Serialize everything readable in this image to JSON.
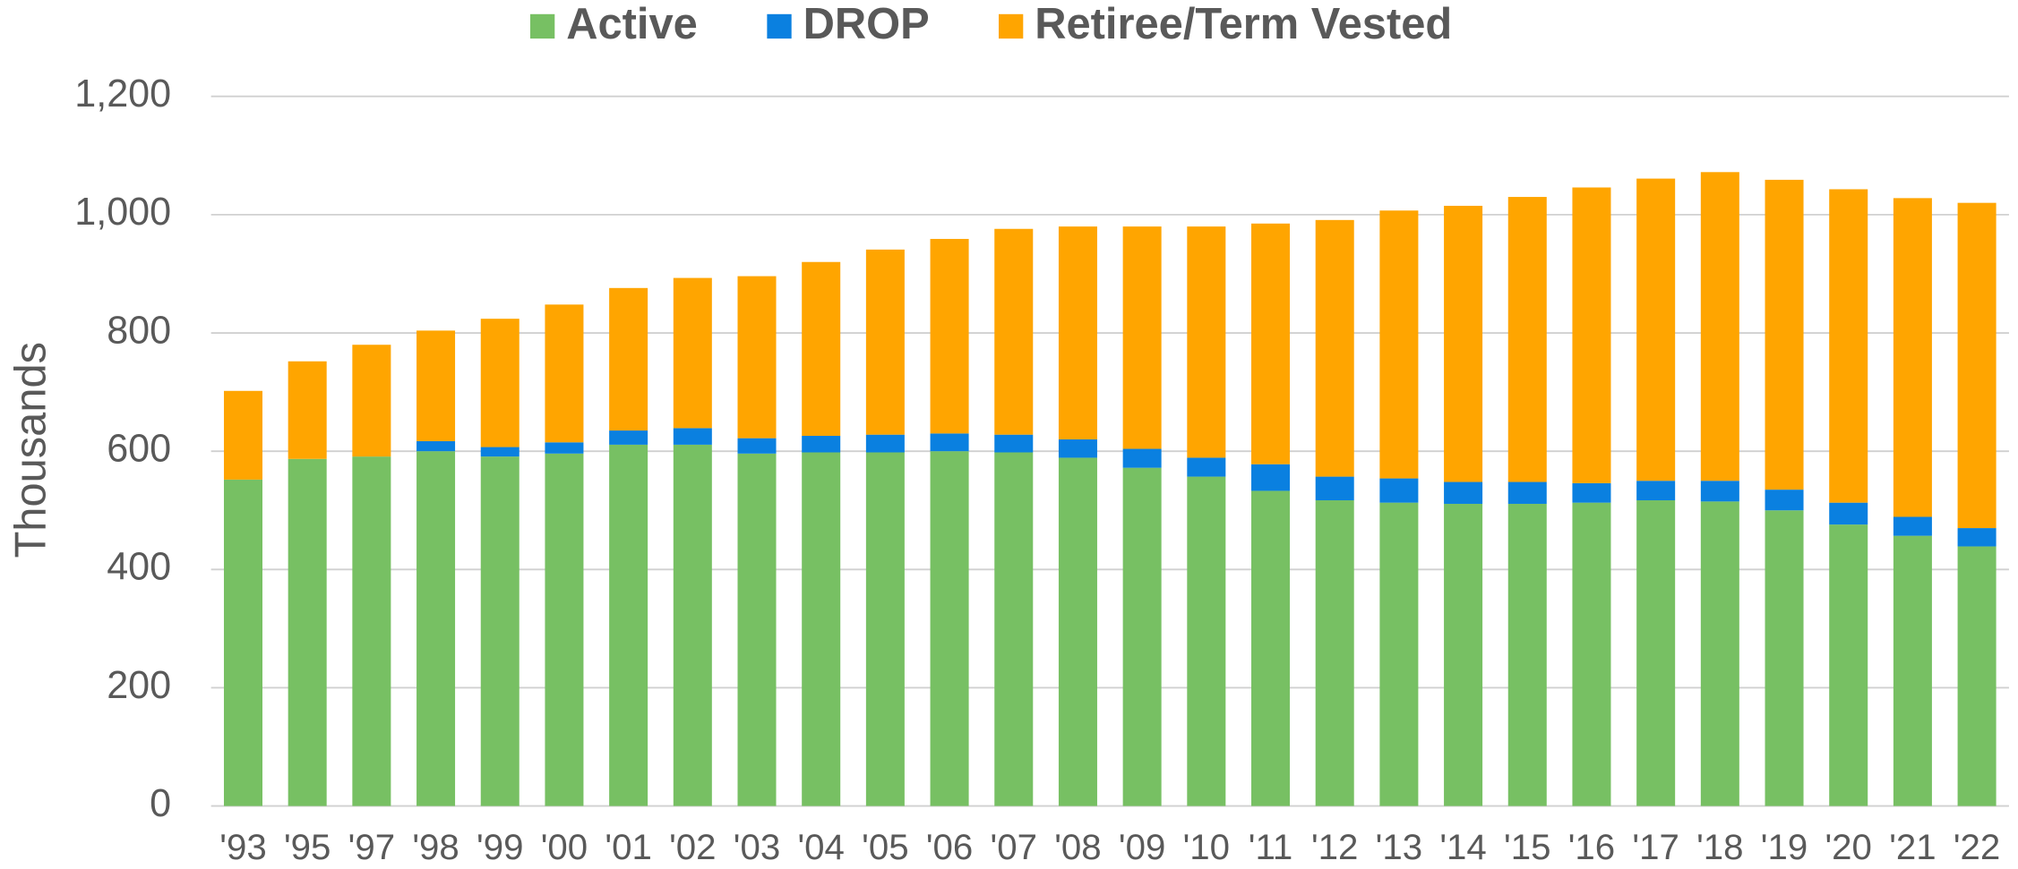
{
  "chart_data": {
    "type": "stacked_bar",
    "ylabel": "Thousands",
    "categories": [
      "'93",
      "'95",
      "'97",
      "'98",
      "'99",
      "'00",
      "'01",
      "'02",
      "'03",
      "'04",
      "'05",
      "'06",
      "'07",
      "'08",
      "'09",
      "'10",
      "'11",
      "'12",
      "'13",
      "'14",
      "'15",
      "'16",
      "'17",
      "'18",
      "'19",
      "'20",
      "'21",
      "'22"
    ],
    "series": [
      {
        "name": "Active",
        "color": "#77c063",
        "values": [
          552,
          587,
          591,
          600,
          591,
          596,
          611,
          611,
          596,
          598,
          598,
          600,
          598,
          589,
          572,
          557,
          533,
          517,
          513,
          511,
          511,
          513,
          517,
          515,
          500,
          476,
          457,
          439
        ]
      },
      {
        "name": "DROP",
        "color": "#0a80e0",
        "values": [
          0,
          0,
          0,
          17,
          16,
          19,
          24,
          28,
          26,
          28,
          30,
          30,
          30,
          31,
          32,
          32,
          45,
          40,
          41,
          37,
          37,
          33,
          33,
          35,
          35,
          37,
          32,
          31
        ]
      },
      {
        "name": "Retiree/Term Vested",
        "color": "#ffa500",
        "values": [
          150,
          165,
          189,
          187,
          217,
          233,
          241,
          254,
          274,
          294,
          313,
          329,
          348,
          360,
          376,
          391,
          407,
          434,
          453,
          467,
          482,
          500,
          511,
          522,
          524,
          530,
          539,
          550
        ]
      }
    ],
    "ylim": [
      0,
      1200
    ],
    "yticks": [
      0,
      200,
      400,
      600,
      800,
      {
        "value": 1000,
        "label": "1,000"
      },
      {
        "value": 1200,
        "label": "1,200"
      }
    ],
    "grid": true,
    "legend": "top"
  }
}
